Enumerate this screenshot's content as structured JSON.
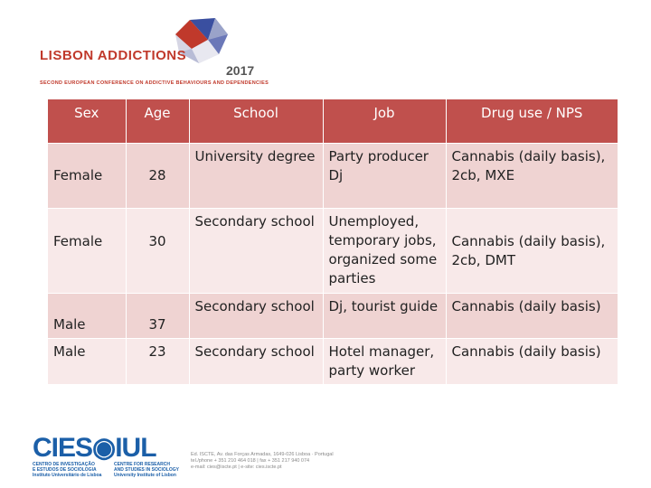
{
  "header": {
    "logo_title": "LISBON ADDICTIONS",
    "logo_year": "2017",
    "logo_subtitle": "SECOND EUROPEAN CONFERENCE ON ADDICTIVE BEHAVIOURS AND DEPENDENCIES"
  },
  "table": {
    "columns": [
      "Sex",
      "Age",
      "School",
      "Job",
      "Drug use / NPS"
    ],
    "rows": [
      {
        "sex": "Female",
        "age": "28",
        "school": "University degree",
        "job": "Party producer Dj",
        "drug": "Cannabis (daily basis), 2cb, MXE"
      },
      {
        "sex": "Female",
        "age": "30",
        "school": "Secondary school",
        "job": "Unemployed, temporary jobs, organized some parties",
        "drug": "Cannabis (daily basis), 2cb, DMT"
      },
      {
        "sex": "Male",
        "age": "37",
        "school": "Secondary school",
        "job": "Dj, tourist guide",
        "drug": "Cannabis (daily basis)"
      },
      {
        "sex": "Male",
        "age": "23",
        "school": "Secondary school",
        "job": "Hotel manager, party worker",
        "drug": "Cannabis (daily basis)"
      }
    ]
  },
  "footer": {
    "logo": "CIES◉IUL",
    "sub1_line1": "CENTRO DE INVESTIGAÇÃO",
    "sub1_line2": "E ESTUDOS DE SOCIOLOGIA",
    "sub1_line3": "Instituto Universitário de Lisboa",
    "sub2_line1": "CENTRE FOR RESEARCH",
    "sub2_line2": "AND STUDIES IN SOCIOLOGY",
    "sub2_line3": "University Institute of Lisbon",
    "addr_line1": "Ed. ISCTE, Av. das Forças Armadas, 1649-026 Lisboa · Portugal",
    "addr_line2": "tel./phone + 351 210 464 018 | fax + 351 217 940 074",
    "addr_line3": "e-mail: cies@iscte.pt | e-site: cies.iscte.pt"
  }
}
